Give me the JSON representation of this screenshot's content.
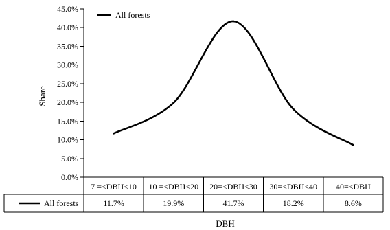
{
  "chart_data": {
    "type": "line",
    "categories": [
      "7 =<DBH<10",
      "10 =<DBH<20",
      "20=<DBH<30",
      "30=<DBH<40",
      "40=<DBH"
    ],
    "series": [
      {
        "name": "All forests",
        "values": [
          11.7,
          19.9,
          41.7,
          18.2,
          8.6
        ],
        "color": "#000000"
      }
    ],
    "value_labels": [
      "11.7%",
      "19.9%",
      "41.7%",
      "18.2%",
      "8.6%"
    ],
    "yticks": [
      "0.0%",
      "5.0%",
      "10.0%",
      "15.0%",
      "20.0%",
      "25.0%",
      "30.0%",
      "35.0%",
      "40.0%",
      "45.0%"
    ],
    "ylim": [
      0,
      45
    ],
    "ylabel": "Share",
    "xlabel": "DBH",
    "legend_position": "top-left",
    "grid": false,
    "smooth": true,
    "data_table": true
  }
}
